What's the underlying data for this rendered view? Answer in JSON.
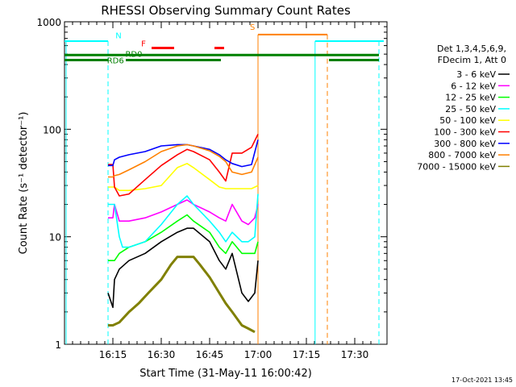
{
  "chart_data": {
    "type": "line",
    "title": "RHESSI Observing Summary Count Rates",
    "xlabel": "Start Time (31-May-11 16:00:42)",
    "ylabel": "Count Rate (s⁻¹ detector⁻¹)",
    "ylog": true,
    "ylim": [
      1,
      1000
    ],
    "xlim_minutes": [
      0,
      100
    ],
    "x_ticks": [
      {
        "label": "16:15",
        "min": 15
      },
      {
        "label": "16:30",
        "min": 30
      },
      {
        "label": "16:45",
        "min": 45
      },
      {
        "label": "17:00",
        "min": 60
      },
      {
        "label": "17:15",
        "min": 75
      },
      {
        "label": "17:30",
        "min": 90
      }
    ],
    "y_ticks": [
      {
        "label": "1",
        "v": 1
      },
      {
        "label": "10",
        "v": 10
      },
      {
        "label": "100",
        "v": 100
      },
      {
        "label": "1000",
        "v": 1000
      }
    ],
    "legend_header": [
      "Det 1,3,4,5,6,9,",
      "FDecim 1, Att 0"
    ],
    "timestamp": "17-Oct-2021 13:45",
    "series": [
      {
        "name": "3 - 6 keV",
        "color": "#000000",
        "points": [
          [
            13.5,
            3
          ],
          [
            15,
            2.2
          ],
          [
            15.5,
            4
          ],
          [
            17,
            5
          ],
          [
            20,
            6
          ],
          [
            25,
            7
          ],
          [
            30,
            9
          ],
          [
            35,
            11
          ],
          [
            38,
            12
          ],
          [
            40,
            12
          ],
          [
            45,
            9
          ],
          [
            48,
            6
          ],
          [
            50,
            5
          ],
          [
            52,
            7
          ],
          [
            55,
            3
          ],
          [
            57,
            2.5
          ],
          [
            59,
            3
          ],
          [
            60,
            6
          ]
        ]
      },
      {
        "name": "6 - 12 keV",
        "color": "#ff00ff",
        "points": [
          [
            13.5,
            15
          ],
          [
            15,
            15
          ],
          [
            15.5,
            20
          ],
          [
            17,
            14
          ],
          [
            20,
            14
          ],
          [
            25,
            15
          ],
          [
            30,
            17
          ],
          [
            35,
            20
          ],
          [
            38,
            22
          ],
          [
            40,
            20
          ],
          [
            45,
            17
          ],
          [
            48,
            15
          ],
          [
            50,
            14
          ],
          [
            52,
            20
          ],
          [
            55,
            14
          ],
          [
            57,
            13
          ],
          [
            59,
            15
          ],
          [
            60,
            20
          ]
        ]
      },
      {
        "name": "12 - 25 keV",
        "color": "#00ff00",
        "points": [
          [
            13.5,
            6
          ],
          [
            15.5,
            6
          ],
          [
            17,
            7
          ],
          [
            20,
            8
          ],
          [
            25,
            9
          ],
          [
            30,
            11
          ],
          [
            35,
            14
          ],
          [
            38,
            16
          ],
          [
            40,
            14
          ],
          [
            45,
            11
          ],
          [
            48,
            8
          ],
          [
            50,
            7
          ],
          [
            52,
            9
          ],
          [
            55,
            7
          ],
          [
            59,
            7
          ],
          [
            60,
            9
          ]
        ]
      },
      {
        "name": "25 - 50 keV",
        "color": "#00ffff",
        "points": [
          [
            13.5,
            20
          ],
          [
            15,
            20
          ],
          [
            15.5,
            20
          ],
          [
            17,
            10
          ],
          [
            18,
            8
          ],
          [
            20,
            8
          ],
          [
            25,
            9
          ],
          [
            30,
            13
          ],
          [
            35,
            20
          ],
          [
            38,
            24
          ],
          [
            40,
            20
          ],
          [
            45,
            14
          ],
          [
            48,
            11
          ],
          [
            50,
            9
          ],
          [
            52,
            11
          ],
          [
            55,
            9
          ],
          [
            57,
            9
          ],
          [
            59,
            10
          ],
          [
            60,
            25
          ]
        ]
      },
      {
        "name": "50 - 100 keV",
        "color": "#ffff00",
        "points": [
          [
            13.5,
            29
          ],
          [
            15,
            29
          ],
          [
            15.5,
            29
          ],
          [
            17,
            27
          ],
          [
            20,
            27
          ],
          [
            25,
            28
          ],
          [
            30,
            30
          ],
          [
            35,
            44
          ],
          [
            38,
            48
          ],
          [
            40,
            44
          ],
          [
            45,
            34
          ],
          [
            48,
            29
          ],
          [
            50,
            28
          ],
          [
            52,
            28
          ],
          [
            55,
            28
          ],
          [
            58,
            28
          ],
          [
            60,
            30
          ]
        ]
      },
      {
        "name": "100 - 300 keV",
        "color": "#ff0000",
        "points": [
          [
            13.5,
            47
          ],
          [
            15,
            47
          ],
          [
            15.5,
            29
          ],
          [
            17,
            24
          ],
          [
            20,
            25
          ],
          [
            25,
            34
          ],
          [
            30,
            46
          ],
          [
            35,
            58
          ],
          [
            38,
            65
          ],
          [
            40,
            62
          ],
          [
            45,
            52
          ],
          [
            48,
            40
          ],
          [
            50,
            33
          ],
          [
            52,
            60
          ],
          [
            55,
            60
          ],
          [
            58,
            68
          ],
          [
            60,
            90
          ]
        ]
      },
      {
        "name": "300 - 800 keV",
        "color": "#0000ff",
        "points": [
          [
            13.5,
            46
          ],
          [
            15,
            46
          ],
          [
            15.5,
            52
          ],
          [
            17,
            55
          ],
          [
            20,
            58
          ],
          [
            25,
            62
          ],
          [
            30,
            70
          ],
          [
            35,
            72
          ],
          [
            38,
            72
          ],
          [
            40,
            70
          ],
          [
            45,
            65
          ],
          [
            48,
            58
          ],
          [
            50,
            52
          ],
          [
            52,
            48
          ],
          [
            55,
            45
          ],
          [
            58,
            47
          ],
          [
            60,
            80
          ]
        ]
      },
      {
        "name": "800 - 7000 keV",
        "color": "#ff8000",
        "points": [
          [
            13.5,
            36
          ],
          [
            15,
            36
          ],
          [
            15.5,
            37
          ],
          [
            17,
            38
          ],
          [
            20,
            42
          ],
          [
            25,
            50
          ],
          [
            30,
            62
          ],
          [
            35,
            70
          ],
          [
            38,
            72
          ],
          [
            40,
            70
          ],
          [
            45,
            63
          ],
          [
            48,
            56
          ],
          [
            50,
            50
          ],
          [
            52,
            40
          ],
          [
            55,
            38
          ],
          [
            58,
            40
          ],
          [
            60,
            55
          ]
        ]
      },
      {
        "name": "7000 - 15000 keV",
        "color": "#808000",
        "points": [
          [
            13.5,
            1.5
          ],
          [
            15,
            1.5
          ],
          [
            17,
            1.6
          ],
          [
            20,
            2.0
          ],
          [
            23,
            2.4
          ],
          [
            26,
            3.0
          ],
          [
            30,
            4.0
          ],
          [
            33,
            5.5
          ],
          [
            35,
            6.5
          ],
          [
            38,
            6.5
          ],
          [
            40,
            6.5
          ],
          [
            42,
            5.5
          ],
          [
            45,
            4.2
          ],
          [
            48,
            3.0
          ],
          [
            50,
            2.4
          ],
          [
            52,
            2.0
          ],
          [
            55,
            1.5
          ],
          [
            57,
            1.4
          ],
          [
            59,
            1.3
          ]
        ]
      }
    ],
    "annotations": [
      {
        "label": "N",
        "color": "#00ffff"
      },
      {
        "label": "F",
        "color": "#ff0000"
      },
      {
        "label": "S",
        "color": "#ff8000"
      },
      {
        "label": "RD0",
        "color": "#008000"
      },
      {
        "label": "RD6",
        "color": "#008000"
      }
    ],
    "flags": {
      "night": {
        "color": "#00ffff",
        "level": 660,
        "spans": [
          [
            0,
            13.5
          ],
          [
            77.7,
            99
          ]
        ],
        "dashed_boundaries": [
          13.5,
          97.5
        ],
        "solid_boundaries": [
          0.5,
          77.7
        ]
      },
      "saa": {
        "color": "#ff8000",
        "level": 760,
        "spans": [
          [
            60,
            81.5
          ]
        ],
        "solid_boundary": 60,
        "dashed_boundary": 81.5
      },
      "flare": {
        "color": "#ff0000",
        "level": 570,
        "spans": [
          [
            27,
            34
          ],
          [
            46.5,
            49.5
          ]
        ]
      },
      "rd0": {
        "color": "#008000",
        "level": 490,
        "spans": [
          [
            0,
            97.5
          ]
        ]
      },
      "rd6": {
        "color": "#008000",
        "level": 440,
        "spans": [
          [
            0,
            13.5
          ],
          [
            19,
            48.5
          ],
          [
            82,
            97.5
          ]
        ]
      }
    }
  }
}
